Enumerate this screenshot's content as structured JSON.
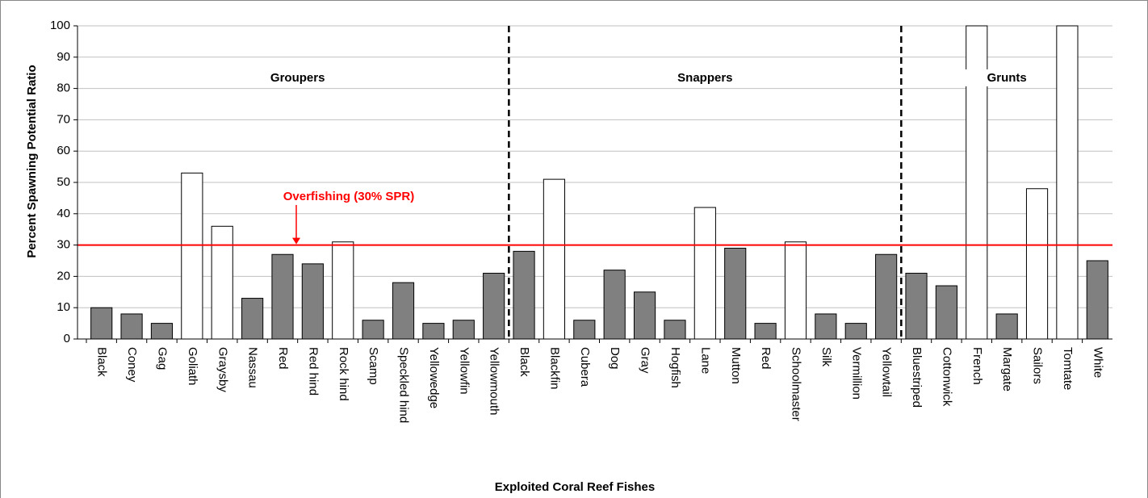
{
  "chart_data": {
    "type": "bar",
    "x_label": "Exploited Coral Reef Fishes",
    "y_label": "Percent Spawning Potential Ratio",
    "ylim": [
      0,
      100
    ],
    "yticks": [
      0,
      10,
      20,
      30,
      40,
      50,
      60,
      70,
      80,
      90,
      100
    ],
    "grid": true,
    "groups": [
      {
        "name": "Groupers",
        "categories": [
          "Black",
          "Coney",
          "Gag",
          "Goliath",
          "Graysby",
          "Nassau",
          "Red",
          "Red hind",
          "Rock hind",
          "Scamp",
          "Speckled hind",
          "Yellowedge",
          "Yellowfin",
          "Yellowmouth"
        ],
        "values": [
          10,
          8,
          5,
          53,
          36,
          13,
          27,
          24,
          31,
          6,
          18,
          5,
          6,
          21
        ],
        "colors": [
          "#808080",
          "#808080",
          "#808080",
          "#ffffff",
          "#ffffff",
          "#808080",
          "#808080",
          "#808080",
          "#ffffff",
          "#808080",
          "#808080",
          "#808080",
          "#808080",
          "#808080"
        ]
      },
      {
        "name": "Snappers",
        "categories": [
          "Black",
          "Blackfin",
          "Cubera",
          "Dog",
          "Gray",
          "Hogfish",
          "Lane",
          "Mutton",
          "Red",
          "Schoolmaster",
          "Silk",
          "Vermillion",
          "Yellowtail"
        ],
        "values": [
          28,
          51,
          6,
          22,
          15,
          6,
          42,
          29,
          5,
          31,
          8,
          5,
          27
        ],
        "colors": [
          "#808080",
          "#ffffff",
          "#808080",
          "#808080",
          "#808080",
          "#808080",
          "#ffffff",
          "#808080",
          "#808080",
          "#ffffff",
          "#808080",
          "#808080",
          "#808080"
        ]
      },
      {
        "name": "Grunts",
        "categories": [
          "Bluestriped",
          "Cottonwick",
          "French",
          "Margate",
          "Sailors",
          "Tomtate",
          "White"
        ],
        "values": [
          21,
          17,
          100,
          8,
          48,
          100,
          25
        ],
        "colors": [
          "#808080",
          "#808080",
          "#ffffff",
          "#808080",
          "#ffffff",
          "#ffffff",
          "#808080"
        ]
      }
    ],
    "reference_line": {
      "value": 30,
      "label": "Overfishing (30% SPR)",
      "color": "#ff0000"
    }
  }
}
